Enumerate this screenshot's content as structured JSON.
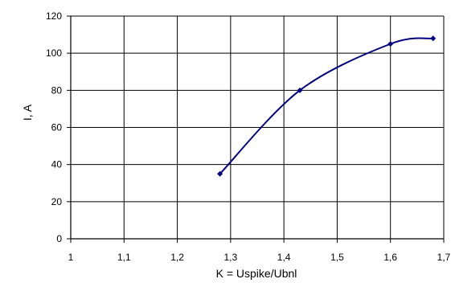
{
  "chart_data": {
    "type": "line",
    "xlabel": "K = Uspike/Ubnl",
    "ylabel": "I, A",
    "xlim": [
      1,
      1.7
    ],
    "ylim": [
      0,
      120
    ],
    "x_ticks": [
      "1",
      "1,1",
      "1,2",
      "1,3",
      "1,4",
      "1,5",
      "1,6",
      "1,7"
    ],
    "y_ticks": [
      "0",
      "20",
      "40",
      "60",
      "80",
      "100",
      "120"
    ],
    "grid": true,
    "series": [
      {
        "x": [
          1.28,
          1.43,
          1.6,
          1.68
        ],
        "y": [
          35,
          80,
          105,
          108
        ],
        "color": "#000080",
        "marker": "diamond",
        "smooth": true
      }
    ]
  }
}
